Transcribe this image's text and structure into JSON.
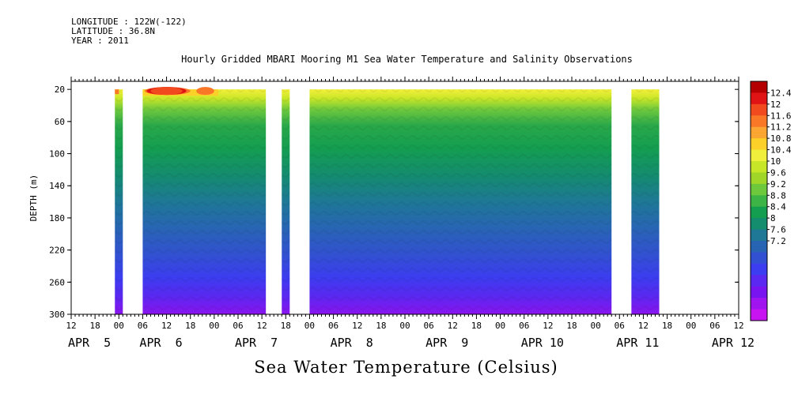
{
  "header": {
    "longitude": "LONGITUDE : 122W(-122)",
    "latitude": "LATITUDE : 36.8N",
    "year": "YEAR : 2011"
  },
  "chart_data": {
    "type": "heatmap",
    "title": "Hourly Gridded MBARI Mooring M1 Sea Water Temperature and Salinity Observations",
    "xlabel": "",
    "ylabel": "DEPTH (m)",
    "bottom_title": "Sea Water Temperature (Celsius)",
    "ylim": [
      300,
      10
    ],
    "yticks": [
      20,
      60,
      100,
      140,
      180,
      220,
      260,
      300
    ],
    "xlim_hours": [
      0,
      168
    ],
    "hour_tick_labels": [
      "12",
      "18",
      "00",
      "06",
      "12",
      "18",
      "00",
      "06",
      "12",
      "18",
      "00",
      "06",
      "12",
      "18",
      "00",
      "06",
      "12",
      "18",
      "00",
      "06",
      "12",
      "18",
      "00",
      "06",
      "12",
      "18",
      "00",
      "06",
      "12"
    ],
    "date_labels": [
      {
        "label": "APR  5",
        "at_label_index": 0
      },
      {
        "label": "APR  6",
        "at_label_index": 3
      },
      {
        "label": "APR  7",
        "at_label_index": 7
      },
      {
        "label": "APR  8",
        "at_label_index": 11
      },
      {
        "label": "APR  9",
        "at_label_index": 15
      },
      {
        "label": "APR 10",
        "at_label_index": 19
      },
      {
        "label": "APR 11",
        "at_label_index": 23
      },
      {
        "label": "APR 12",
        "at_label_index": 27
      }
    ],
    "data_segments_hours": [
      [
        11,
        13
      ],
      [
        18,
        49
      ],
      [
        53,
        55
      ],
      [
        60,
        136
      ],
      [
        141,
        148
      ]
    ],
    "colorbar": {
      "levels": [
        "12.4",
        "12",
        "11.6",
        "11.2",
        "10.8",
        "10.4",
        "10",
        "9.6",
        "9.2",
        "8.8",
        "8.4",
        "8",
        "7.6",
        "7.2"
      ],
      "colors": [
        "#b40000",
        "#e01414",
        "#f04a1e",
        "#f87828",
        "#fba532",
        "#fbd028",
        "#f0f03c",
        "#c8e628",
        "#a0d628",
        "#6ec83c",
        "#3cb446",
        "#149e50",
        "#148c6e",
        "#1e7896",
        "#2864b4",
        "#3250d2",
        "#3c3cf0",
        "#5a28f0",
        "#7814f0",
        "#a014f0",
        "#c814f0"
      ]
    }
  }
}
